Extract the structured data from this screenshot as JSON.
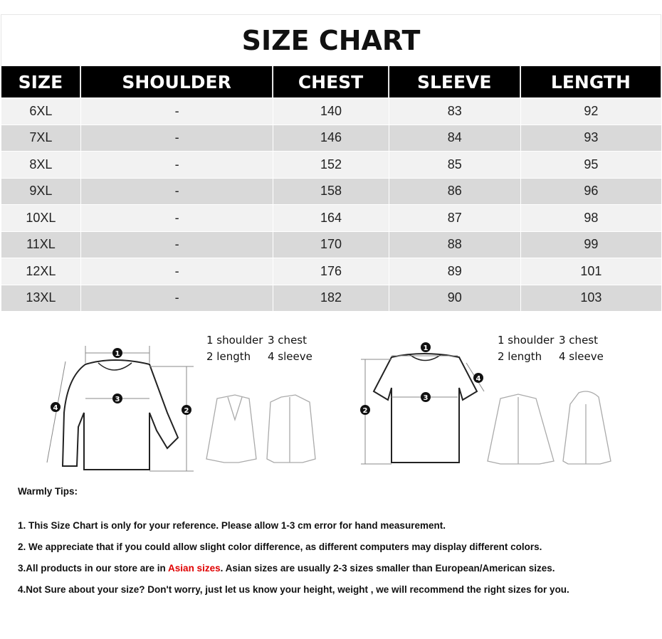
{
  "title": "SIZE CHART",
  "columns": [
    "SIZE",
    "SHOULDER",
    "CHEST",
    "SLEEVE",
    "LENGTH"
  ],
  "rows": [
    [
      "6XL",
      "-",
      "140",
      "83",
      "92"
    ],
    [
      "7XL",
      "-",
      "146",
      "84",
      "93"
    ],
    [
      "8XL",
      "-",
      "152",
      "85",
      "95"
    ],
    [
      "9XL",
      "-",
      "158",
      "86",
      "96"
    ],
    [
      "10XL",
      "-",
      "164",
      "87",
      "98"
    ],
    [
      "11XL",
      "-",
      "170",
      "88",
      "99"
    ],
    [
      "12XL",
      "-",
      "176",
      "89",
      "101"
    ],
    [
      "13XL",
      "-",
      "182",
      "90",
      "103"
    ]
  ],
  "legend": {
    "l1": "1 shoulder",
    "l3": "3 chest",
    "l2": "2 length",
    "l4": "4 sleeve"
  },
  "markers": [
    "1",
    "2",
    "3",
    "4"
  ],
  "tips": {
    "heading": "Warmly Tips:",
    "t1": "1. This Size Chart is only for your reference. Please allow 1-3 cm error for hand measurement.",
    "t2": "2. We appreciate that if you could allow slight color difference, as different computers may display different colors.",
    "t3a": "3.All products in our store are in ",
    "t3b": "Asian sizes",
    "t3c": ". Asian sizes are usually 2-3 sizes smaller than European/American sizes.",
    "t4": "4.Not Sure about your size? Don't worry, just let us know your height, weight , we will recommend the right sizes for you."
  },
  "colors": {
    "header": "#000000",
    "row_light": "#f2f2f2",
    "row_dark": "#d9d9d9",
    "highlight": "#e00000"
  }
}
